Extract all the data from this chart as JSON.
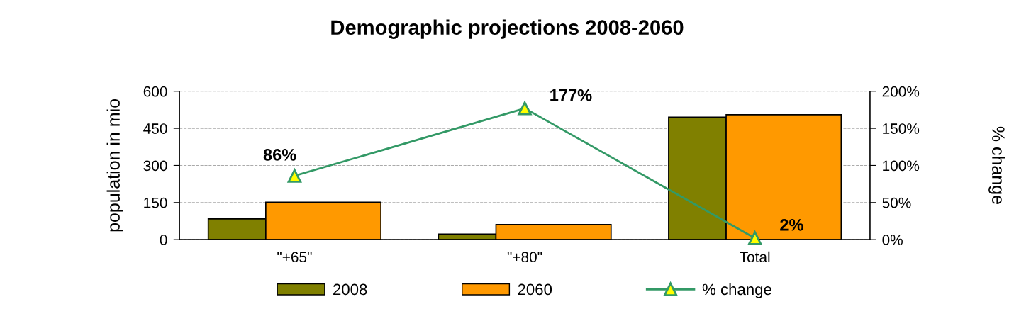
{
  "chart_data": {
    "type": "bar",
    "title": "Demographic projections 2008-2060",
    "ylabel": "population in mio",
    "y2label": "% change",
    "categories": [
      "\"+65\"",
      "\"+80\"",
      "Total"
    ],
    "series": [
      {
        "name": "2008",
        "color": "#808000",
        "values": [
          84,
          22,
          495
        ]
      },
      {
        "name": "2060",
        "color": "#ff9900",
        "values": [
          151,
          61,
          505
        ]
      },
      {
        "name": "% change",
        "type": "line",
        "axis": "y2",
        "color": "#339966",
        "marker": "triangle",
        "values": [
          86,
          177,
          2
        ],
        "value_labels": [
          "86%",
          "177%",
          "2%"
        ]
      }
    ],
    "ylim": [
      0,
      600
    ],
    "yticks": [
      0,
      150,
      300,
      450,
      600
    ],
    "y2lim": [
      0,
      200
    ],
    "y2ticks": [
      {
        "value": 0,
        "label": "0%"
      },
      {
        "value": 50,
        "label": "50%"
      },
      {
        "value": 100,
        "label": "100%"
      },
      {
        "value": 150,
        "label": "150%"
      },
      {
        "value": 200,
        "label": "200%"
      }
    ],
    "grid": "y",
    "legend": "bottom"
  }
}
